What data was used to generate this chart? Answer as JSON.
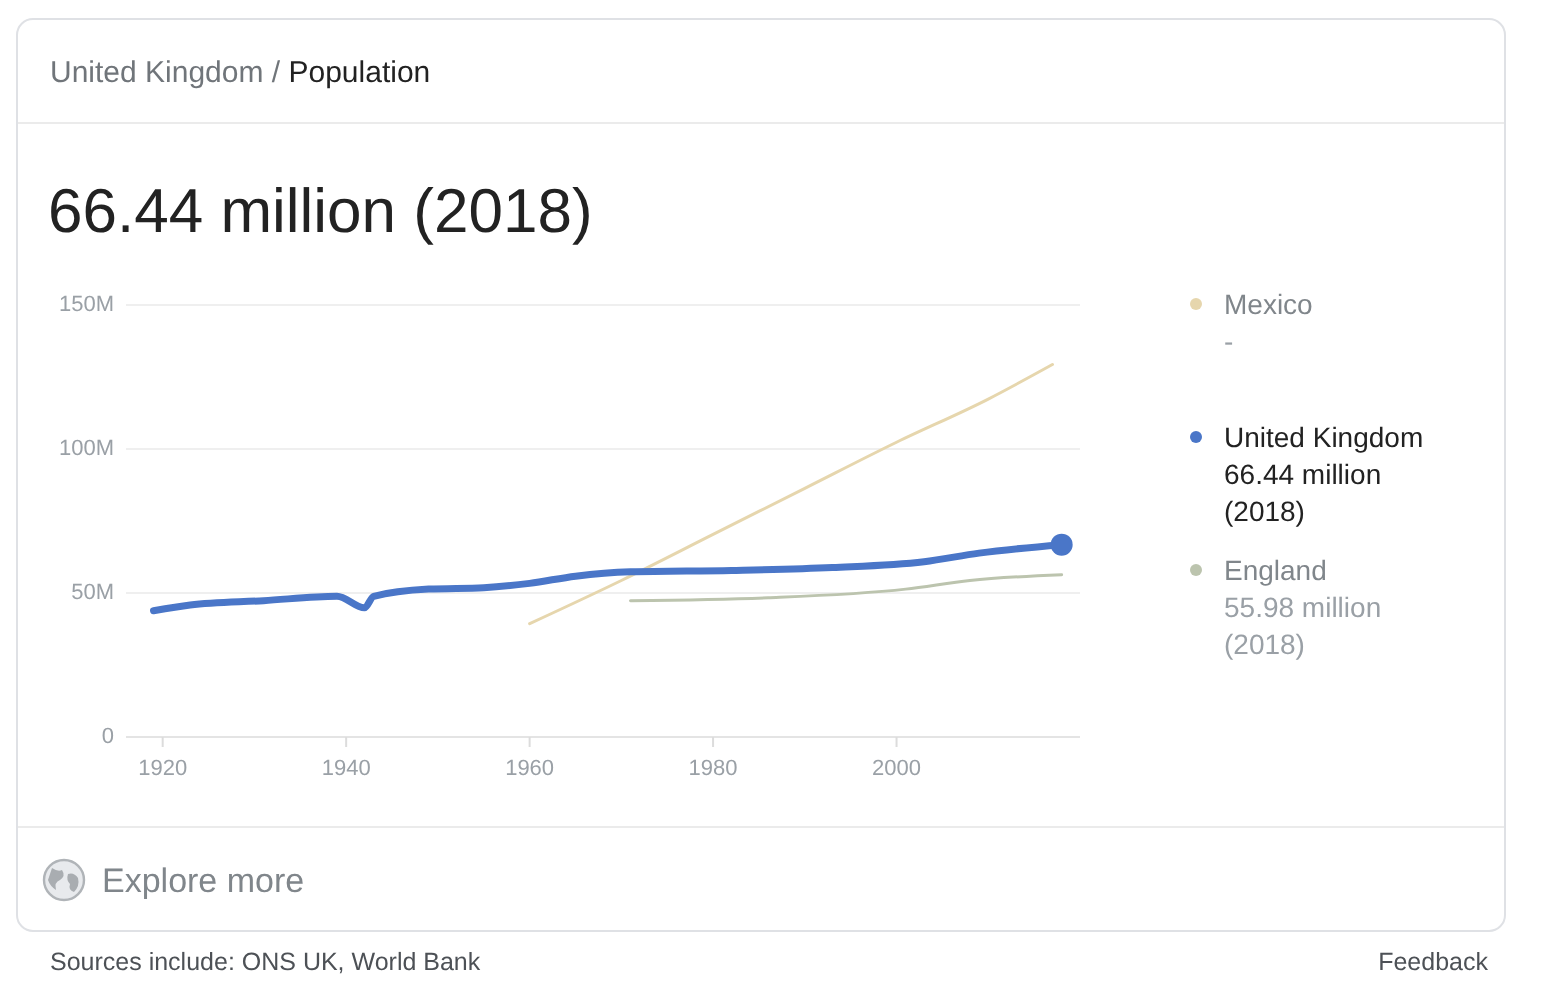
{
  "chart_data": {
    "type": "line",
    "title": "United Kingdom / Population",
    "subtitle": "66.44 million (2018)",
    "xlim": [
      1916,
      2020
    ],
    "xticks": [
      1920,
      1940,
      1960,
      1980,
      2000
    ],
    "ylim": [
      0,
      150
    ],
    "yticks": [
      {
        "value": 0,
        "label": "0"
      },
      {
        "value": 50,
        "label": "50M"
      },
      {
        "value": 100,
        "label": "100M"
      },
      {
        "value": 150,
        "label": "150M"
      }
    ],
    "grid": "y",
    "legend": "right",
    "series": [
      {
        "name": "Mexico",
        "color": "#e6d6ad",
        "x": [
          1960,
          1970,
          1980,
          1990,
          2000,
          2010,
          2017
        ],
        "values": [
          39,
          54,
          70,
          86,
          102,
          117,
          129
        ]
      },
      {
        "name": "United Kingdom",
        "color": "#4a76c8",
        "x": [
          1919,
          1923,
          1931,
          1939,
          1942,
          1943,
          1949,
          1955,
          1960,
          1965,
          1971,
          1982,
          1993,
          2003,
          2009,
          2018
        ],
        "values": [
          43.5,
          45.5,
          47,
          48.5,
          44.5,
          48.5,
          51,
          51.5,
          53,
          55.5,
          57,
          57.5,
          58.5,
          60.5,
          63.5,
          66.44
        ]
      },
      {
        "name": "England",
        "color": "#bcc4ae",
        "x": [
          1971,
          1986,
          2001,
          2008,
          2018
        ],
        "values": [
          47,
          48,
          51,
          54,
          55.98
        ]
      },
      {
        "type": "scatter",
        "color": "#4a76c8",
        "x": [
          2018
        ],
        "values": [
          66.44
        ]
      }
    ],
    "annotations": [
      "-",
      "66.44 million (2018)",
      "55.98 million (2018)",
      "Explore more",
      "Sources include: ONS UK, World Bank",
      "Feedback"
    ]
  }
}
